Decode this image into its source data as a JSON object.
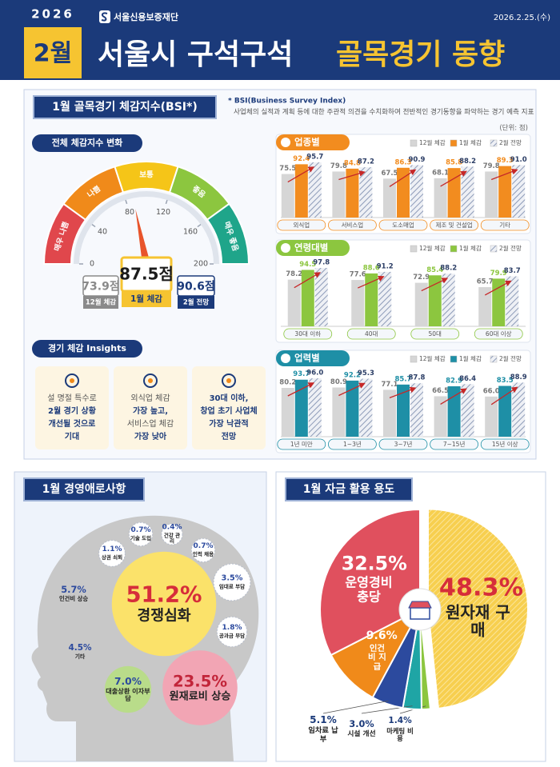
{
  "header": {
    "year": "2026",
    "month": "2월",
    "org": "서울신용보증재단",
    "date": "2026.2.25.(수)",
    "title_main": "서울시 구석구석",
    "title_accent": "골목경기 동향"
  },
  "bsi_section": {
    "title": "1월 골목경기 체감지수(BSI*)",
    "note_term": "* BSI(Business Survey Index)",
    "note_text": "사업체의 실적과 계획 등에 대한 주관적 의견을 수치화하여 전반적인 경기동향을 파악하는 경기 예측 지표",
    "unit": "(단위: 점)"
  },
  "insights": {
    "title": "경기 체감 Insights",
    "cards": [
      [
        "설 명절 특수로",
        "2월 경기 상황",
        "개선될 것으로",
        "기대"
      ],
      [
        "외식업 체감",
        "가장 높고,",
        "서비스업 체감",
        "가장 낮아"
      ],
      [
        "30대 이하,",
        "창업 초기 사업체",
        "가장 낙관적",
        "전망"
      ]
    ]
  },
  "chart_data": [
    {
      "type": "gauge",
      "title": "전체 체감지수 변화",
      "ylim": [
        0,
        200
      ],
      "yticks": [
        0,
        40,
        80,
        120,
        160,
        200
      ],
      "bands": [
        "매우 나쁨",
        "나쁨",
        "보통",
        "좋음",
        "매우 좋음"
      ],
      "band_colors": [
        "#e0474c",
        "#f08a1a",
        "#f5c518",
        "#8cc63f",
        "#1fa58a"
      ],
      "categories": [
        "12월 체감",
        "1월 체감",
        "2월 전망"
      ],
      "values": [
        73.9,
        87.5,
        90.6
      ],
      "value_labels": [
        "73.9점",
        "87.5점",
        "90.6점"
      ],
      "colors": [
        "#8a8a8a",
        "#f6c431",
        "#1b3a7a"
      ]
    },
    {
      "type": "grouped-bar",
      "title": "업종별",
      "categories": [
        "외식업",
        "서비스업",
        "도소매업",
        "제조 및 건설업",
        "기타"
      ],
      "series": [
        {
          "name": "12월 체감",
          "color": "#d6d6d6",
          "values": [
            75.5,
            79.8,
            67.5,
            68.1,
            79.8
          ],
          "value_labels": [
            "75.5",
            "79.8",
            "67.5",
            "68.1",
            "79.8"
          ]
        },
        {
          "name": "1월 체감",
          "color": "#f28c1f",
          "values": [
            92.4,
            84.8,
            86.3,
            85.8,
            89.3
          ],
          "value_labels": [
            "92.4",
            "84.8",
            "86.3",
            "85.8",
            "89.3"
          ]
        },
        {
          "name": "2월 전망",
          "color": "#8d9bb8",
          "pattern": "hatch",
          "values": [
            95.7,
            87.2,
            90.9,
            88.2,
            91.0
          ],
          "value_labels": [
            "95.7",
            "87.2",
            "90.9",
            "88.2",
            "91.0"
          ]
        }
      ]
    },
    {
      "type": "grouped-bar",
      "title": "연령대별",
      "categories": [
        "30대 이하",
        "40대",
        "50대",
        "60대 이상"
      ],
      "series": [
        {
          "name": "12월 체감",
          "color": "#d6d6d6",
          "values": [
            78.2,
            77.6,
            72.9,
            65.7
          ],
          "value_labels": [
            "78.2",
            "77.6",
            "72.9",
            "65.7"
          ]
        },
        {
          "name": "1월 체감",
          "color": "#8cc63f",
          "values": [
            94.5,
            88.6,
            85.4,
            79.9
          ],
          "value_labels": [
            "94.5",
            "88.6",
            "85.4",
            "79.9"
          ]
        },
        {
          "name": "2월 전망",
          "color": "#8d9bb8",
          "pattern": "hatch",
          "values": [
            97.8,
            91.2,
            88.2,
            83.7
          ],
          "value_labels": [
            "97.8",
            "91.2",
            "88.2",
            "83.7"
          ]
        }
      ]
    },
    {
      "type": "grouped-bar",
      "title": "업력별",
      "categories": [
        "1년 미만",
        "1~3년",
        "3~7년",
        "7~15년",
        "15년 이상"
      ],
      "series": [
        {
          "name": "12월 체감",
          "color": "#d6d6d6",
          "values": [
            80.2,
            80.9,
            77.1,
            66.5,
            66.0
          ],
          "value_labels": [
            "80.2",
            "80.9",
            "77.1",
            "66.5",
            "66.0"
          ]
        },
        {
          "name": "1월 체감",
          "color": "#1e8fa6",
          "values": [
            93.7,
            92.2,
            85.7,
            82.9,
            83.5
          ],
          "value_labels": [
            "93.7",
            "92.2",
            "85.7",
            "82.9",
            "83.5"
          ]
        },
        {
          "name": "2월 전망",
          "color": "#8d9bb8",
          "pattern": "hatch",
          "values": [
            96.0,
            95.3,
            87.8,
            86.4,
            88.9
          ],
          "value_labels": [
            "96.0",
            "95.3",
            "87.8",
            "86.4",
            "88.9"
          ]
        }
      ]
    },
    {
      "type": "bubble",
      "title": "1월 경영애로사항",
      "categories": [
        "경쟁심화",
        "원재료비 상승",
        "대출상환 이자부담",
        "인건비 상승",
        "기타",
        "임대료 부담",
        "공과금 부담",
        "상권 쇠퇴",
        "기술 도입",
        "건강 관리",
        "인력 채용"
      ],
      "values": [
        51.2,
        23.5,
        7.0,
        5.7,
        4.5,
        3.5,
        1.8,
        1.1,
        0.7,
        0.4,
        0.7
      ],
      "value_labels": [
        "51.2%",
        "23.5%",
        "7.0%",
        "5.7%",
        "4.5%",
        "3.5%",
        "1.8%",
        "1.1%",
        "0.7%",
        "0.4%",
        "0.7%"
      ],
      "colors": [
        "#fbe26a",
        "#f2a5b4",
        "#b9dc8a",
        "#c8c8c8",
        "#c8c8c8",
        "#ffffff",
        "#ffffff",
        "#ffffff",
        "#ffffff",
        "#ffffff",
        "#ffffff"
      ]
    },
    {
      "type": "pie",
      "title": "1월 자금 활용 용도",
      "categories": [
        "원자재 구매",
        "마케팅 비용",
        "시설 개선",
        "임차료 납부",
        "인건비 지급",
        "운영경비 충당"
      ],
      "values": [
        48.3,
        1.4,
        3.0,
        5.1,
        9.6,
        32.5
      ],
      "value_labels": [
        "48.3%",
        "1.4%",
        "3.0%",
        "5.1%",
        "9.6%",
        "32.5%"
      ],
      "colors": [
        "#f7cf4f",
        "#8cc63f",
        "#1fa5a5",
        "#2c4a9e",
        "#f08a1a",
        "#e0505e"
      ]
    }
  ]
}
